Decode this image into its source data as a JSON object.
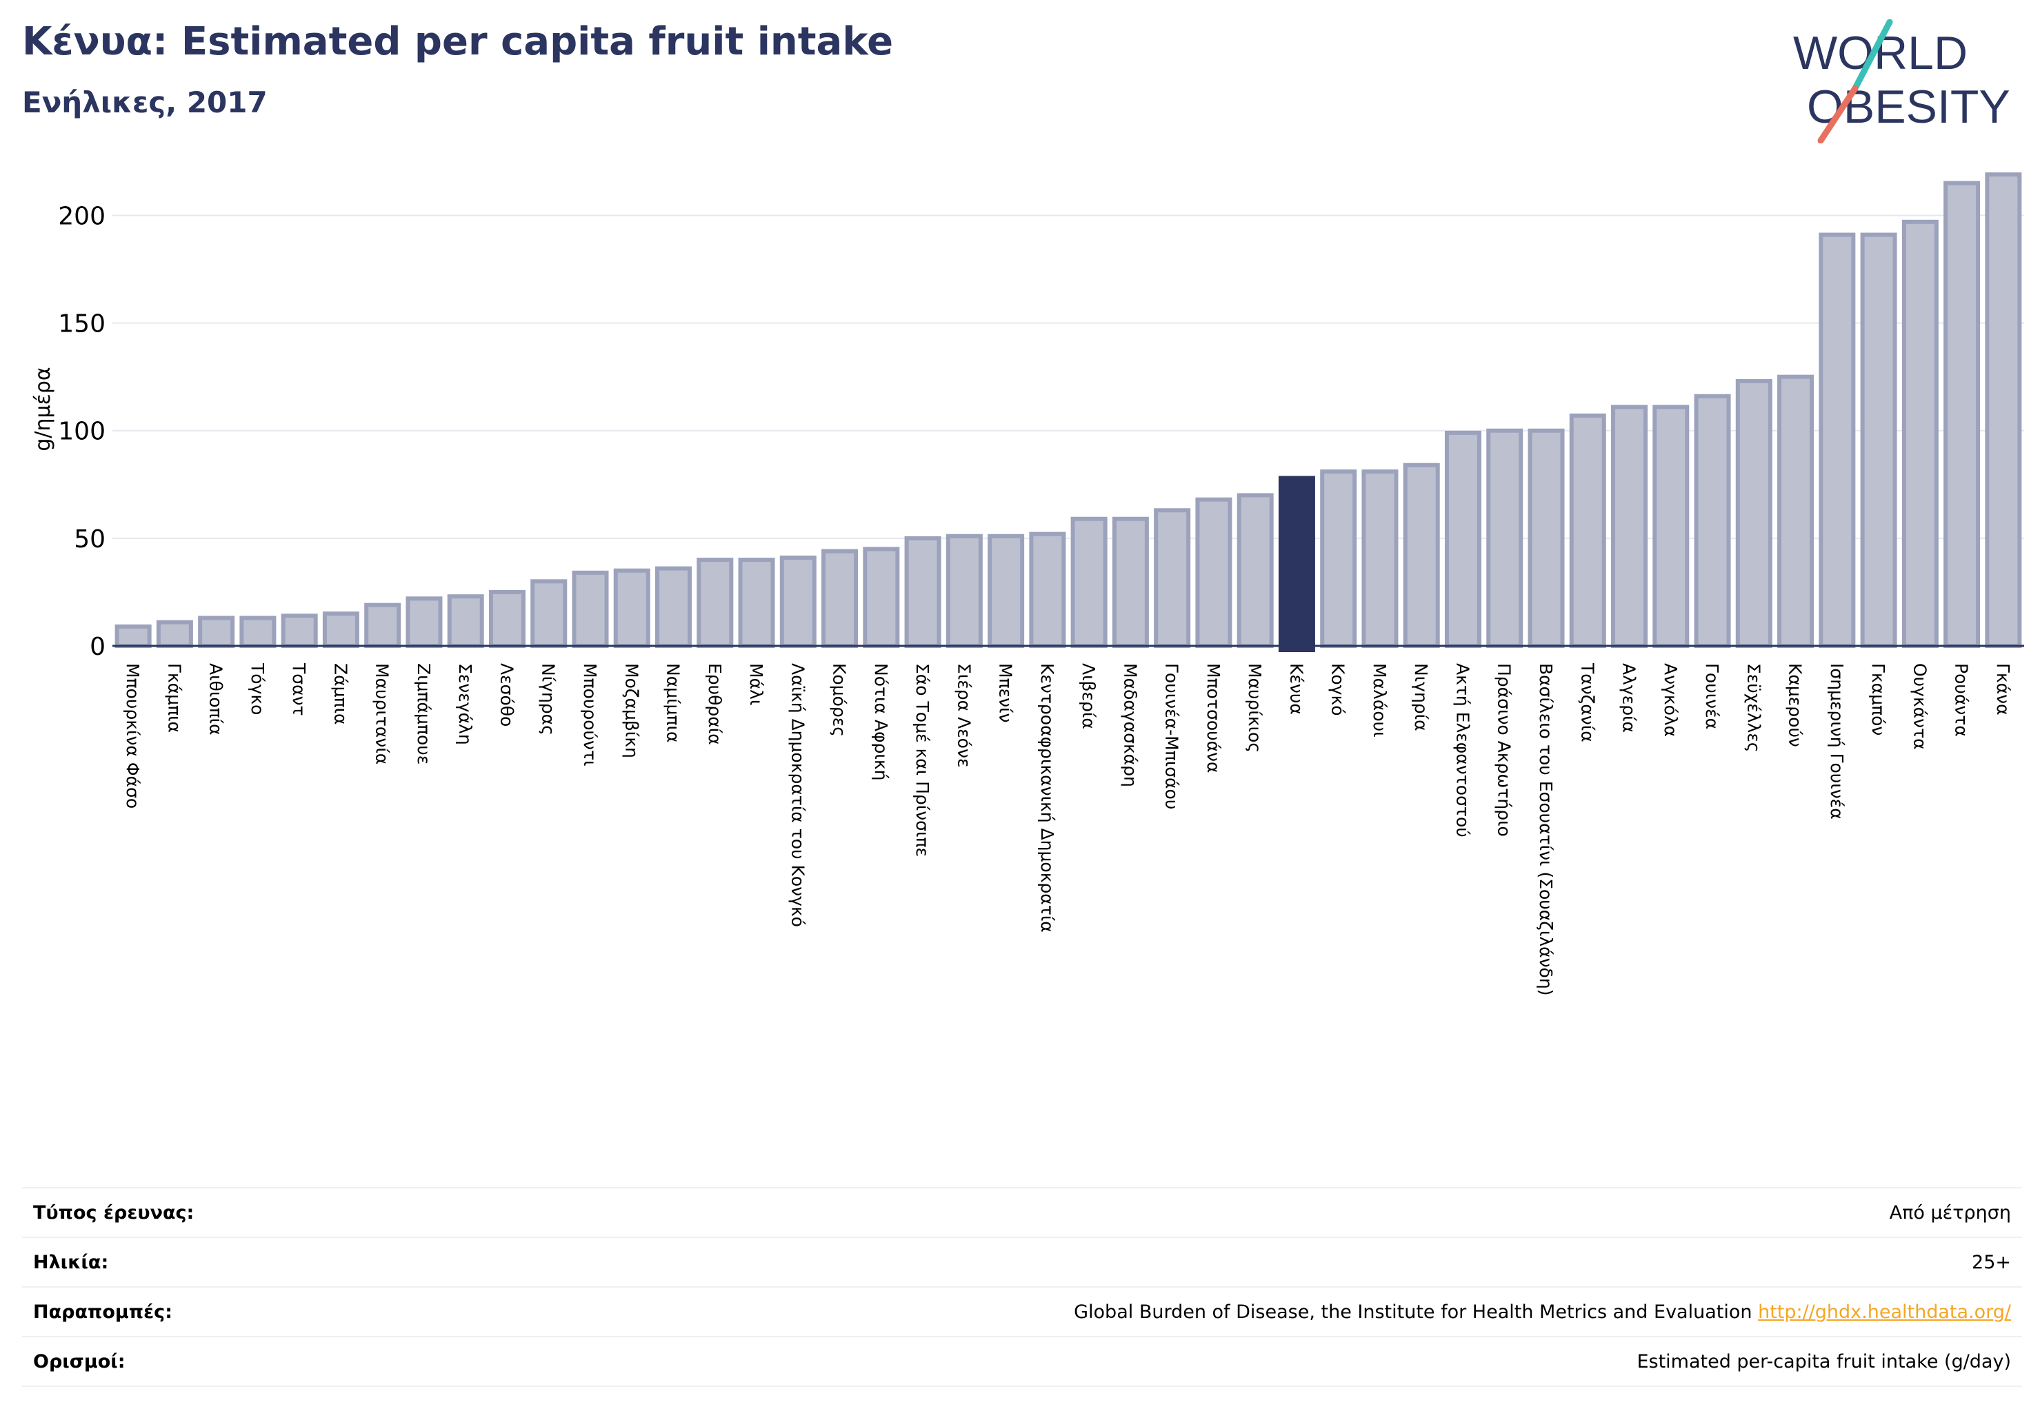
{
  "header": {
    "title": "Κένυα: Estimated per capita fruit intake",
    "subtitle": "Ενήλικες, 2017"
  },
  "logo": {
    "line1": "WORLD",
    "line2": "OBESITY"
  },
  "colors": {
    "bar": "#bcc0cf",
    "bar_stroke": "#9ca2bb",
    "highlight": "#2b3560",
    "title": "#2b3560",
    "link": "#f5a623"
  },
  "chart_data": {
    "type": "bar",
    "ylabel": "g/ημέρα",
    "ylim": [
      0,
      220
    ],
    "yticks": [
      0,
      50,
      100,
      150,
      200
    ],
    "highlight": "Κένυα",
    "grid": true,
    "categories": [
      "Μπουρκίνα Φάσο",
      "Γκάμπια",
      "Αιθιοπία",
      "Τόγκο",
      "Τσαντ",
      "Ζάμπια",
      "Μαυριτανία",
      "Ζιμπάμπουε",
      "Σενεγάλη",
      "Λεσόθο",
      "Νίγηρας",
      "Μπουρούντι",
      "Μοζαμβίκη",
      "Ναμίμπια",
      "Ερυθραία",
      "Μάλι",
      "Λαϊκή Δημοκρατία του Κονγκό",
      "Κομόρες",
      "Νότια Αφρική",
      "Σάο Τομέ και Πρίνσιπε",
      "Σιέρα Λεόνε",
      "Μπενίν",
      "Κεντροαφρικανική Δημοκρατία",
      "Λιβερία",
      "Μαδαγασκάρη",
      "Γουινέα-Μπισάου",
      "Μποτσουάνα",
      "Μαυρίκιος",
      "Κένυα",
      "Κογκό",
      "Μαλάουι",
      "Νιγηρία",
      "Ακτή Ελεφαντοστού",
      "Πράσινο Ακρωτήριο",
      "Βασίλειο του Εσουατίνι (Σουαζιλάνδη)",
      "Τανζανία",
      "Αλγερία",
      "Ανγκόλα",
      "Γουινέα",
      "Σεϋχέλλες",
      "Καμερούν",
      "Ισημερινή Γουινέα",
      "Γκαμπόν",
      "Ουγκάντα",
      "Ρουάντα",
      "Γκάνα"
    ],
    "values": [
      9,
      11,
      13,
      13,
      14,
      15,
      19,
      22,
      23,
      25,
      30,
      34,
      35,
      36,
      40,
      40,
      41,
      44,
      45,
      50,
      51,
      51,
      52,
      59,
      59,
      63,
      68,
      70,
      78,
      81,
      81,
      84,
      99,
      100,
      100,
      107,
      111,
      111,
      116,
      123,
      125,
      191,
      191,
      197,
      215,
      219
    ]
  },
  "info": {
    "survey_label": "Τύπος έρευνας:",
    "survey_value": "Από μέτρηση",
    "age_label": "Ηλικία:",
    "age_value": "25+",
    "ref_label": "Παραπομπές:",
    "ref_value": "Global Burden of Disease, the Institute for Health Metrics and Evaluation",
    "ref_link": "http://ghdx.healthdata.org/",
    "def_label": "Ορισμοί:",
    "def_value": "Estimated per-capita fruit intake (g/day)"
  }
}
